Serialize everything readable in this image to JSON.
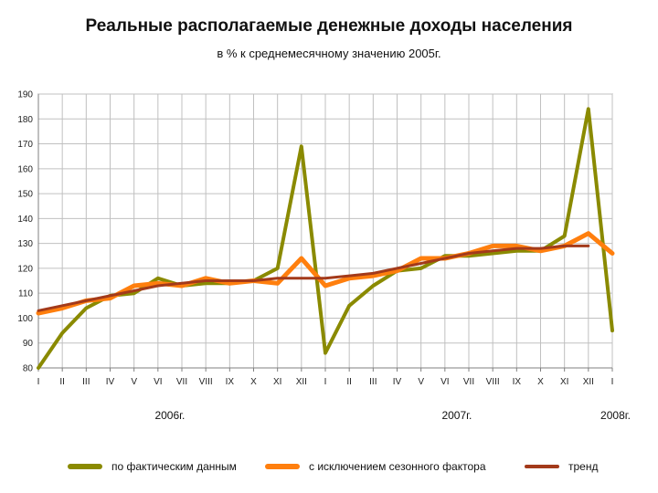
{
  "title": "Реальные располагаемые денежные доходы населения",
  "subtitle": "в % к среднемесячному значению 2005г.",
  "colors": {
    "actual": "#8a8a00",
    "seasonal": "#ff7f0e",
    "trend": "#a33a1a",
    "grid": "#c0c0c0",
    "axis": "#808080"
  },
  "chart_data": {
    "type": "line",
    "ylim": [
      80,
      190
    ],
    "yticks": [
      80,
      90,
      100,
      110,
      120,
      130,
      140,
      150,
      160,
      170,
      180,
      190
    ],
    "categories": [
      "I",
      "II",
      "III",
      "IV",
      "V",
      "VI",
      "VII",
      "VIII",
      "IX",
      "X",
      "XI",
      "XII",
      "I",
      "II",
      "III",
      "IV",
      "V",
      "VI",
      "VII",
      "VIII",
      "IX",
      "X",
      "XI",
      "XII",
      "I"
    ],
    "years": [
      {
        "label": "2006г.",
        "index": 5.5
      },
      {
        "label": "2007г.",
        "index": 17.5
      },
      {
        "label": "2008г.",
        "index": 24
      }
    ],
    "grid": true,
    "legend_position": "bottom",
    "series": [
      {
        "name": "по фактическим данным",
        "key": "actual",
        "values": [
          80,
          94,
          104,
          109,
          110,
          116,
          113,
          114,
          114,
          115,
          120,
          169,
          86,
          105,
          113,
          119,
          120,
          125,
          125,
          126,
          127,
          127,
          133,
          184,
          95
        ]
      },
      {
        "name": "с исключением сезонного фактора",
        "key": "seasonal",
        "values": [
          102,
          104,
          107,
          108,
          113,
          114,
          113,
          116,
          114,
          115,
          114,
          124,
          113,
          116,
          117,
          119,
          124,
          124,
          126,
          129,
          129,
          127,
          129,
          134,
          126
        ]
      },
      {
        "name": "тренд",
        "key": "trend",
        "values": [
          103,
          105,
          107,
          109,
          111,
          113,
          114,
          115,
          115,
          115,
          116,
          116,
          116,
          117,
          118,
          120,
          122,
          124,
          126,
          127,
          128,
          128,
          129,
          129,
          null
        ]
      }
    ]
  }
}
